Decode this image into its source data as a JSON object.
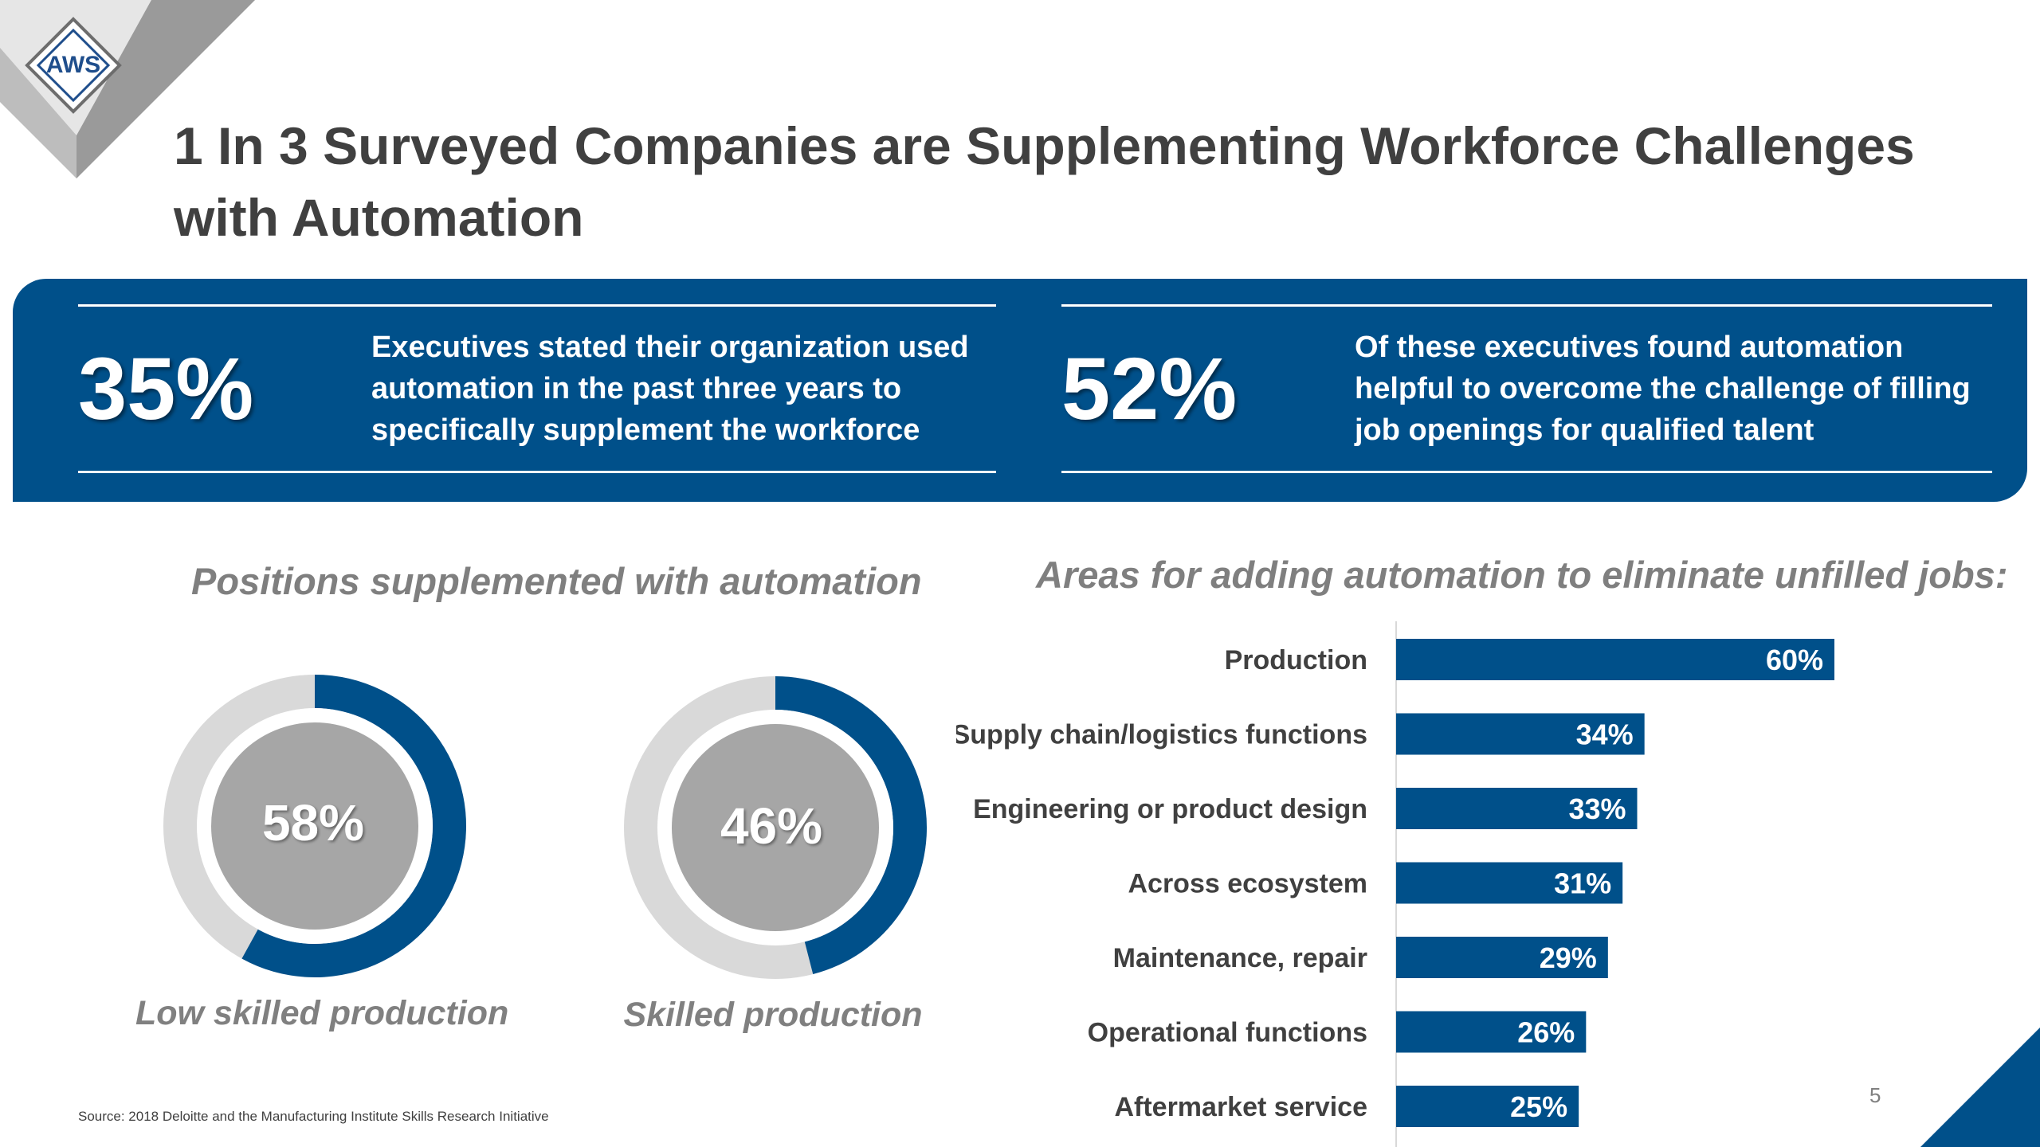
{
  "logo": {
    "text": "AWS"
  },
  "title": "1 In 3 Surveyed Companies are Supplementing Workforce Challenges with Automation",
  "stats": [
    {
      "value": "35%",
      "text": "Executives stated their organization used automation in the past three years to specifically supplement the workforce"
    },
    {
      "value": "52%",
      "text": "Of these executives found automation helpful to overcome the challenge of filling job openings for qualified talent"
    }
  ],
  "left_section_title": "Positions supplemented with automation",
  "right_section_title": "Areas for adding automation to eliminate unfilled jobs:",
  "source": "Source: 2018 Deloitte and the Manufacturing Institute Skills Research Initiative",
  "page_number": "5",
  "colors": {
    "brand_blue": "#00508a",
    "ring_gray": "#d9d9d9",
    "center_gray": "#a6a6a6",
    "text_gray": "#7f7f7f"
  },
  "chart_data": [
    {
      "type": "pie",
      "labels": [
        "Low skilled production"
      ],
      "values": [
        58
      ],
      "center_label": "58%",
      "caption": "Low skilled production"
    },
    {
      "type": "pie",
      "labels": [
        "Skilled production"
      ],
      "values": [
        46
      ],
      "center_label": "46%",
      "caption": "Skilled production"
    },
    {
      "type": "bar",
      "orientation": "horizontal",
      "title": "Areas for adding automation to eliminate unfilled jobs:",
      "categories": [
        "Production",
        "Supply chain/logistics functions",
        "Engineering or product design",
        "Across ecosystem",
        "Maintenance, repair",
        "Operational functions",
        "Aftermarket service"
      ],
      "values": [
        60,
        34,
        33,
        31,
        29,
        26,
        25
      ],
      "value_labels": [
        "60%",
        "34%",
        "33%",
        "31%",
        "29%",
        "26%",
        "25%"
      ],
      "xlim": [
        0,
        100
      ]
    }
  ]
}
